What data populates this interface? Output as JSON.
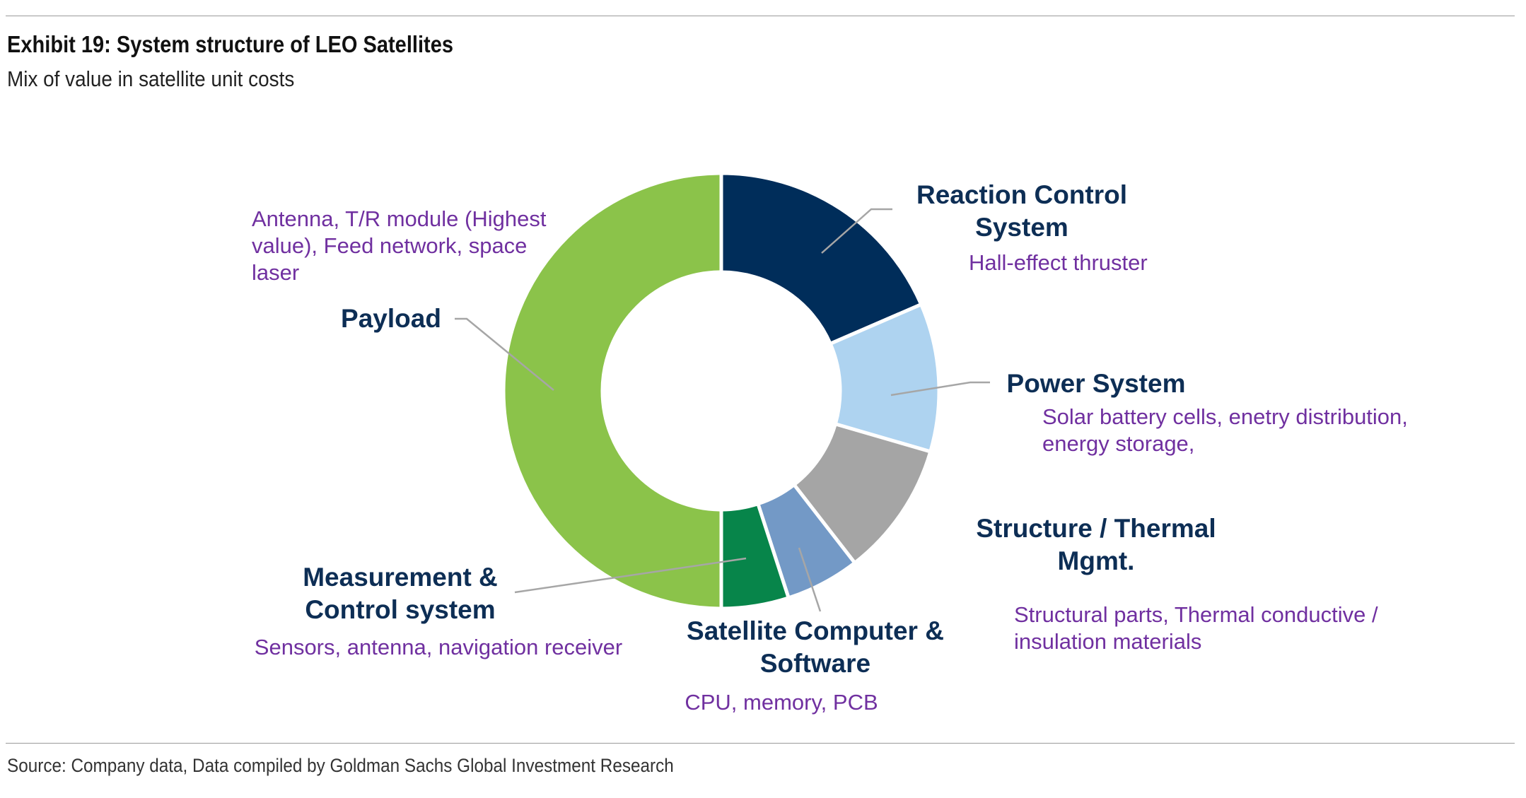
{
  "header": {
    "title": "Exhibit 19: System structure of LEO Satellites",
    "subtitle": "Mix of value in satellite unit costs"
  },
  "footer": {
    "source": "Source: Company data, Data compiled by Goldman Sachs Global Investment Research"
  },
  "chart_data": {
    "type": "pie",
    "title": "Exhibit 19: System structure of LEO Satellites",
    "subtitle": "Mix of value in satellite unit costs",
    "hole": true,
    "unit": "percent (estimated from slice angles)",
    "series": [
      {
        "label_lines": [
          "Reaction Control",
          "System"
        ],
        "description_lines": [
          "Hall-effect thruster"
        ],
        "value": 18.5,
        "color": "#002d5a"
      },
      {
        "label_lines": [
          "Power System"
        ],
        "description_lines": [
          "Solar battery cells, enetry distribution,",
          "energy storage,"
        ],
        "value": 11,
        "color": "#aed3f0"
      },
      {
        "label_lines": [
          "Structure / Thermal",
          "Mgmt."
        ],
        "description_lines": [
          "Structural parts, Thermal conductive /",
          "insulation materials"
        ],
        "value": 10,
        "color": "#a5a5a5"
      },
      {
        "label_lines": [
          "Satellite Computer &",
          "Software"
        ],
        "description_lines": [
          "CPU, memory, PCB"
        ],
        "value": 5.5,
        "color": "#7399c6"
      },
      {
        "label_lines": [
          "Measurement &",
          "Control system"
        ],
        "description_lines": [
          "Sensors, antenna, navigation receiver"
        ],
        "value": 5,
        "color": "#07854a"
      },
      {
        "label_lines": [
          "Payload"
        ],
        "description_lines": [
          "Antenna, T/R module (Highest",
          "value), Feed network, space",
          "laser"
        ],
        "value": 50,
        "color": "#8bc34a"
      }
    ]
  }
}
